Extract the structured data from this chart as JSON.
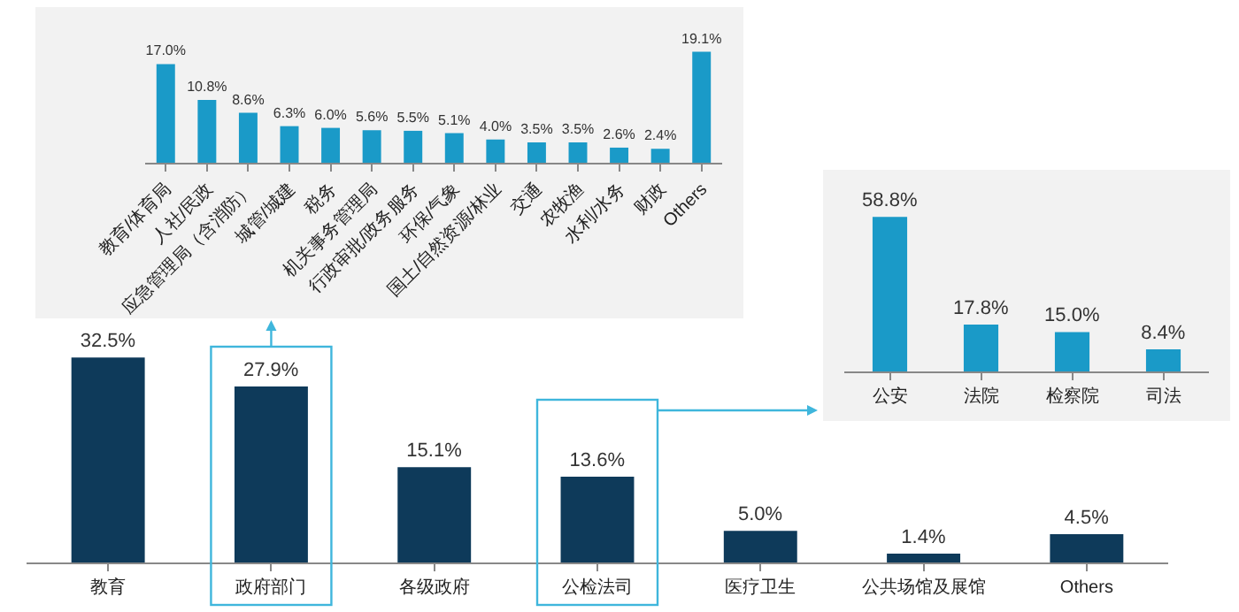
{
  "chart_data": [
    {
      "type": "bar",
      "categories": [
        "教育",
        "政府部门",
        "各级政府",
        "公检法司",
        "医疗卫生",
        "公共场馆及展馆",
        "Others"
      ],
      "values": [
        32.5,
        27.9,
        15.1,
        13.6,
        5.0,
        1.4,
        4.5
      ],
      "value_labels": [
        "32.5%",
        "27.9%",
        "15.1%",
        "13.6%",
        "5.0%",
        "1.4%",
        "4.5%"
      ],
      "color": "#0e3a5a",
      "tick_labels": "x"
    },
    {
      "type": "bar",
      "categories": [
        "教育/体育局",
        "人社/民政",
        "应急管理局（含消防）",
        "城管/城建",
        "税务",
        "机关事务管理局",
        "行政审批/政务服务",
        "环保/气象",
        "国土/自然资源/林业",
        "交通",
        "农牧渔",
        "水利/水务",
        "财政",
        "Others"
      ],
      "values": [
        17.0,
        10.8,
        8.6,
        6.3,
        6.0,
        5.6,
        5.5,
        5.1,
        4.0,
        3.5,
        3.5,
        2.6,
        2.4,
        19.1
      ],
      "value_labels": [
        "17.0%",
        "10.8%",
        "8.6%",
        "6.3%",
        "6.0%",
        "5.6%",
        "5.5%",
        "5.1%",
        "4.0%",
        "3.5%",
        "3.5%",
        "2.6%",
        "2.4%",
        "19.1%"
      ],
      "color": "#1a9ac8",
      "tick_labels": "x"
    },
    {
      "type": "bar",
      "categories": [
        "公安",
        "法院",
        "检察院",
        "司法"
      ],
      "values": [
        58.8,
        17.8,
        15.0,
        8.4
      ],
      "value_labels": [
        "58.8%",
        "17.8%",
        "15.0%",
        "8.4%"
      ],
      "color": "#1a9ac8",
      "tick_labels": "x"
    }
  ]
}
